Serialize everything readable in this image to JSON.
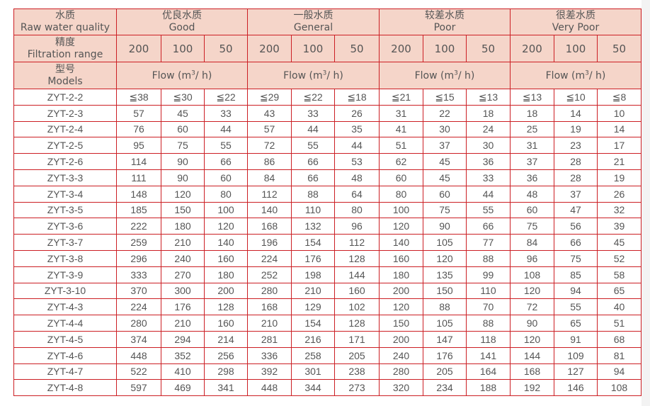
{
  "header": {
    "quality_label_cn": "水质",
    "quality_label_en": "Raw water quality",
    "range_label_cn": "精度",
    "range_label_en": "Filtration range",
    "model_label_cn": "型号",
    "model_label_en": "Models",
    "groups": [
      {
        "cn": "优良水质",
        "en": "Good"
      },
      {
        "cn": "一般水质",
        "en": "General"
      },
      {
        "cn": "较差水质",
        "en": "Poor"
      },
      {
        "cn": "很差水质",
        "en": "Very Poor"
      }
    ],
    "ranges": [
      "200",
      "100",
      "50"
    ],
    "flow_label": "Flow (m",
    "flow_sup": "3",
    "flow_suffix": "/ h)"
  },
  "rows": [
    {
      "model": "ZYT-2-2",
      "values": [
        "≦38",
        "≦30",
        "≦22",
        "≦29",
        "≦22",
        "≦18",
        "≦21",
        "≦15",
        "≦13",
        "≦13",
        "≦10",
        "≦8"
      ]
    },
    {
      "model": "ZYT-2-3",
      "values": [
        "57",
        "45",
        "33",
        "43",
        "33",
        "26",
        "31",
        "22",
        "18",
        "18",
        "14",
        "10"
      ]
    },
    {
      "model": "ZYT-2-4",
      "values": [
        "76",
        "60",
        "44",
        "57",
        "44",
        "35",
        "41",
        "30",
        "24",
        "25",
        "19",
        "14"
      ]
    },
    {
      "model": "ZYT-2-5",
      "values": [
        "95",
        "75",
        "55",
        "72",
        "55",
        "44",
        "51",
        "37",
        "30",
        "31",
        "23",
        "17"
      ]
    },
    {
      "model": "ZYT-2-6",
      "values": [
        "114",
        "90",
        "66",
        "86",
        "66",
        "53",
        "62",
        "45",
        "36",
        "37",
        "28",
        "21"
      ]
    },
    {
      "model": "ZYT-3-3",
      "values": [
        "111",
        "90",
        "60",
        "84",
        "66",
        "48",
        "60",
        "45",
        "33",
        "36",
        "28",
        "19"
      ]
    },
    {
      "model": "ZYT-3-4",
      "values": [
        "148",
        "120",
        "80",
        "112",
        "88",
        "64",
        "80",
        "60",
        "44",
        "48",
        "37",
        "26"
      ]
    },
    {
      "model": "ZYT-3-5",
      "values": [
        "185",
        "150",
        "100",
        "140",
        "110",
        "80",
        "100",
        "75",
        "55",
        "60",
        "47",
        "32"
      ]
    },
    {
      "model": "ZYT-3-6",
      "values": [
        "222",
        "180",
        "120",
        "168",
        "132",
        "96",
        "120",
        "90",
        "66",
        "75",
        "56",
        "39"
      ]
    },
    {
      "model": "ZYT-3-7",
      "values": [
        "259",
        "210",
        "140",
        "196",
        "154",
        "112",
        "140",
        "105",
        "77",
        "84",
        "66",
        "45"
      ]
    },
    {
      "model": "ZYT-3-8",
      "values": [
        "296",
        "240",
        "160",
        "224",
        "176",
        "128",
        "160",
        "120",
        "88",
        "96",
        "75",
        "52"
      ]
    },
    {
      "model": "ZYT-3-9",
      "values": [
        "333",
        "270",
        "180",
        "252",
        "198",
        "144",
        "180",
        "135",
        "99",
        "108",
        "85",
        "58"
      ]
    },
    {
      "model": "ZYT-3-10",
      "values": [
        "370",
        "300",
        "200",
        "280",
        "210",
        "160",
        "200",
        "150",
        "110",
        "120",
        "94",
        "65"
      ]
    },
    {
      "model": "ZYT-4-3",
      "values": [
        "224",
        "176",
        "128",
        "168",
        "129",
        "102",
        "120",
        "88",
        "70",
        "72",
        "55",
        "40"
      ]
    },
    {
      "model": "ZYT-4-4",
      "values": [
        "280",
        "210",
        "160",
        "210",
        "154",
        "128",
        "150",
        "105",
        "88",
        "90",
        "65",
        "51"
      ]
    },
    {
      "model": "ZYT-4-5",
      "values": [
        "374",
        "294",
        "214",
        "281",
        "216",
        "171",
        "200",
        "147",
        "118",
        "120",
        "91",
        "68"
      ]
    },
    {
      "model": "ZYT-4-6",
      "values": [
        "448",
        "352",
        "256",
        "336",
        "258",
        "205",
        "240",
        "176",
        "141",
        "144",
        "109",
        "81"
      ]
    },
    {
      "model": "ZYT-4-7",
      "values": [
        "522",
        "410",
        "298",
        "392",
        "301",
        "238",
        "280",
        "205",
        "164",
        "168",
        "127",
        "94"
      ]
    },
    {
      "model": "ZYT-4-8",
      "values": [
        "597",
        "469",
        "341",
        "448",
        "344",
        "273",
        "320",
        "234",
        "188",
        "192",
        "146",
        "108"
      ]
    }
  ],
  "colors": {
    "border": "#cc1f24",
    "header_bg": "#f5d5c9",
    "text": "#555555"
  }
}
